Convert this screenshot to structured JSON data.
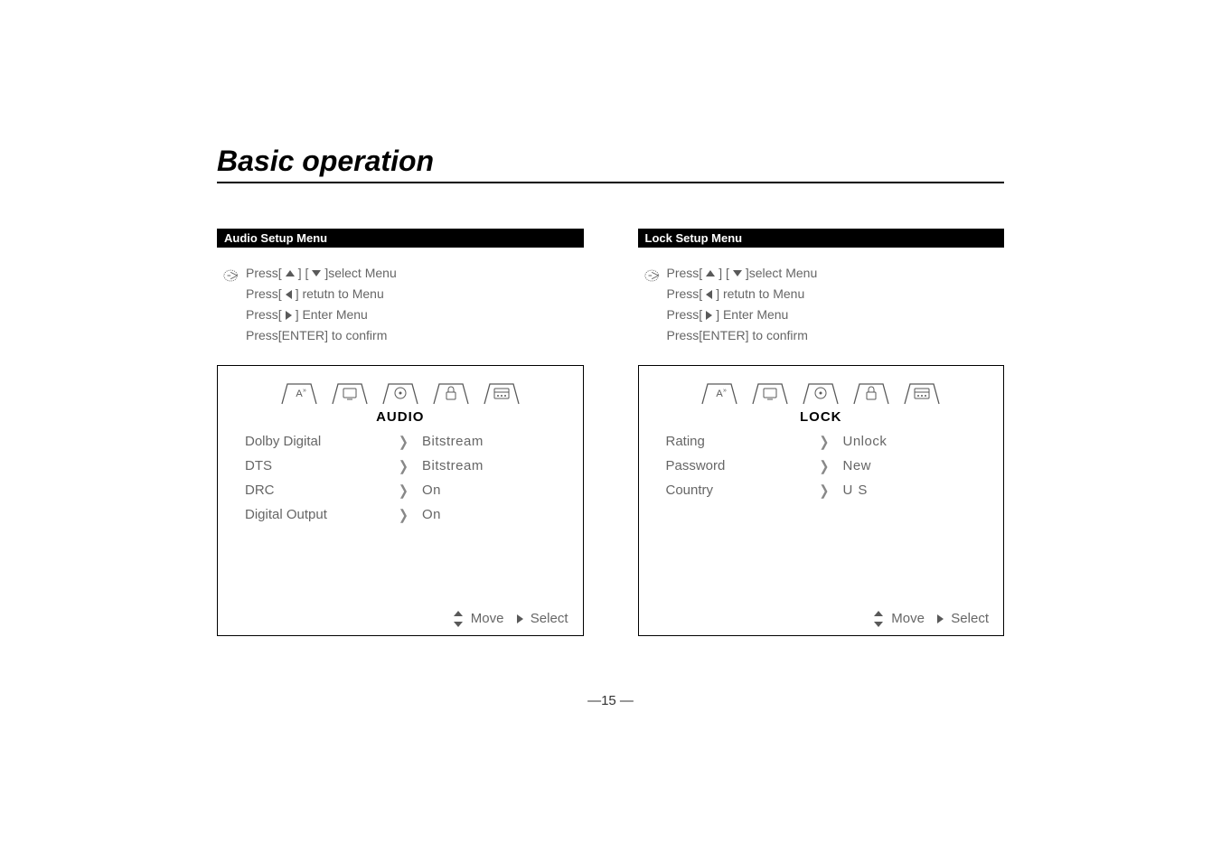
{
  "page": {
    "title": "Basic operation",
    "page_number_display": "15",
    "page_dash_left": "—",
    "page_dash_right": "—"
  },
  "colors": {
    "text": "#595959",
    "black": "#000000",
    "mutetext": "#666666",
    "border": "#000000",
    "bg": "#ffffff"
  },
  "left": {
    "section_header": "Audio Setup Menu",
    "instructions": {
      "line1_pre": "Press[",
      "line1_mid": " ] [ ",
      "line1_post": " ]select Menu",
      "line2_pre": "Press[ ",
      "line2_post": " ] retutn to Menu",
      "line3_pre": "Press[ ",
      "line3_post": " ] Enter Menu",
      "line4": "Press[ENTER] to confirm"
    },
    "panel": {
      "title": "AUDIO",
      "active_tab_index": 2,
      "rows": [
        {
          "label": "Dolby Digital",
          "value": "Bitstream",
          "spaced": false
        },
        {
          "label": "DTS",
          "value": "Bitstream",
          "spaced": false
        },
        {
          "label": "DRC",
          "value": "On",
          "spaced": false
        },
        {
          "label": "Digital Output",
          "value": "On",
          "spaced": false
        }
      ],
      "footer_move": "Move",
      "footer_select": "Select"
    }
  },
  "right": {
    "section_header": "Lock Setup Menu",
    "instructions": {
      "line1_pre": "Press[",
      "line1_mid": " ] [ ",
      "line1_post": " ]select Menu",
      "line2_pre": "Press[ ",
      "line2_post": " ] retutn to Menu",
      "line3_pre": "Press[ ",
      "line3_post": " ] Enter Menu",
      "line4": "Press[ENTER] to confirm"
    },
    "panel": {
      "title": "LOCK",
      "active_tab_index": 3,
      "rows": [
        {
          "label": "Rating",
          "value": "Unlock",
          "spaced": false
        },
        {
          "label": "Password",
          "value": "New",
          "spaced": false
        },
        {
          "label": "Country",
          "value": "US",
          "spaced": true
        }
      ],
      "footer_move": "Move",
      "footer_select": "Select"
    }
  },
  "tabs_icons": [
    "language",
    "display",
    "disc",
    "lock",
    "misc"
  ]
}
